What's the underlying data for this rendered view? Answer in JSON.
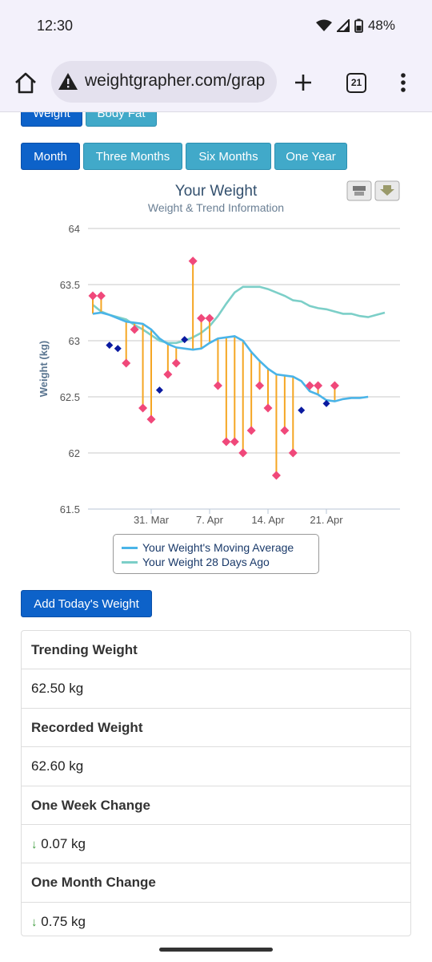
{
  "status": {
    "time": "12:30",
    "battery": "48%"
  },
  "browser": {
    "url": "weightgrapher.com/grap",
    "tab_count": "21"
  },
  "metric_tabs": [
    {
      "label": "Weight"
    },
    {
      "label": "Body Fat"
    }
  ],
  "range_tabs": [
    {
      "label": "Month",
      "active": true
    },
    {
      "label": "Three Months",
      "active": false
    },
    {
      "label": "Six Months",
      "active": false
    },
    {
      "label": "One Year",
      "active": false
    }
  ],
  "chart_data": {
    "type": "line",
    "title": "Your Weight",
    "subtitle": "Weight & Trend Information",
    "ylabel": "Weight (kg)",
    "ylim": [
      61.5,
      64
    ],
    "yticks": [
      "64",
      "63.5",
      "63",
      "62.5",
      "62",
      "61.5"
    ],
    "xticks": [
      "31. Mar",
      "7. Apr",
      "14. Apr",
      "21. Apr"
    ],
    "grid": true,
    "legend_position": "bottom",
    "series": [
      {
        "name": "Your Weight's Moving Average",
        "color": "#4ab4e8",
        "points": [
          [
            "2025-03-24",
            63.24
          ],
          [
            "2025-03-25",
            63.25
          ],
          [
            "2025-03-26",
            63.23
          ],
          [
            "2025-03-27",
            63.2
          ],
          [
            "2025-03-28",
            63.17
          ],
          [
            "2025-03-29",
            63.16
          ],
          [
            "2025-03-30",
            63.15
          ],
          [
            "2025-03-31",
            63.1
          ],
          [
            "2025-04-01",
            63.02
          ],
          [
            "2025-04-02",
            62.97
          ],
          [
            "2025-04-03",
            62.94
          ],
          [
            "2025-04-04",
            62.93
          ],
          [
            "2025-04-05",
            62.92
          ],
          [
            "2025-04-06",
            62.93
          ],
          [
            "2025-04-07",
            62.98
          ],
          [
            "2025-04-08",
            63.02
          ],
          [
            "2025-04-09",
            63.03
          ],
          [
            "2025-04-10",
            63.04
          ],
          [
            "2025-04-11",
            63.0
          ],
          [
            "2025-04-12",
            62.9
          ],
          [
            "2025-04-13",
            62.82
          ],
          [
            "2025-04-14",
            62.75
          ],
          [
            "2025-04-15",
            62.7
          ],
          [
            "2025-04-16",
            62.69
          ],
          [
            "2025-04-17",
            62.68
          ],
          [
            "2025-04-18",
            62.64
          ],
          [
            "2025-04-19",
            62.55
          ],
          [
            "2025-04-20",
            62.52
          ],
          [
            "2025-04-21",
            62.47
          ],
          [
            "2025-04-22",
            62.46
          ],
          [
            "2025-04-23",
            62.48
          ],
          [
            "2025-04-24",
            62.49
          ],
          [
            "2025-04-25",
            62.49
          ],
          [
            "2025-04-26",
            62.5
          ]
        ]
      },
      {
        "name": "Your Weight 28 Days Ago",
        "color": "#7ccfc8",
        "points": [
          [
            "2025-03-24",
            63.32
          ],
          [
            "2025-03-25",
            63.26
          ],
          [
            "2025-03-26",
            63.23
          ],
          [
            "2025-03-27",
            63.21
          ],
          [
            "2025-03-28",
            63.19
          ],
          [
            "2025-03-29",
            63.14
          ],
          [
            "2025-03-30",
            63.1
          ],
          [
            "2025-03-31",
            63.05
          ],
          [
            "2025-04-01",
            63.0
          ],
          [
            "2025-04-02",
            62.98
          ],
          [
            "2025-04-03",
            62.98
          ],
          [
            "2025-04-04",
            63.0
          ],
          [
            "2025-04-05",
            63.03
          ],
          [
            "2025-04-06",
            63.07
          ],
          [
            "2025-04-07",
            63.13
          ],
          [
            "2025-04-08",
            63.22
          ],
          [
            "2025-04-09",
            63.33
          ],
          [
            "2025-04-10",
            63.43
          ],
          [
            "2025-04-11",
            63.48
          ],
          [
            "2025-04-12",
            63.48
          ],
          [
            "2025-04-13",
            63.48
          ],
          [
            "2025-04-14",
            63.46
          ],
          [
            "2025-04-15",
            63.43
          ],
          [
            "2025-04-16",
            63.4
          ],
          [
            "2025-04-17",
            63.36
          ],
          [
            "2025-04-18",
            63.35
          ],
          [
            "2025-04-19",
            63.31
          ],
          [
            "2025-04-20",
            63.29
          ],
          [
            "2025-04-21",
            63.28
          ],
          [
            "2025-04-22",
            63.26
          ],
          [
            "2025-04-23",
            63.24
          ],
          [
            "2025-04-24",
            63.24
          ],
          [
            "2025-04-25",
            63.22
          ],
          [
            "2025-04-26",
            63.21
          ],
          [
            "2025-04-27",
            63.23
          ],
          [
            "2025-04-28",
            63.25
          ]
        ]
      }
    ],
    "weights": [
      [
        "2025-03-24",
        63.4,
        "above"
      ],
      [
        "2025-03-25",
        63.4,
        "above"
      ],
      [
        "2025-03-26",
        62.96,
        "below"
      ],
      [
        "2025-03-27",
        62.93,
        "below"
      ],
      [
        "2025-03-28",
        62.8,
        "above"
      ],
      [
        "2025-03-29",
        63.1,
        "above"
      ],
      [
        "2025-03-30",
        62.4,
        "above"
      ],
      [
        "2025-03-31",
        62.3,
        "above"
      ],
      [
        "2025-04-01",
        62.56,
        "below"
      ],
      [
        "2025-04-02",
        62.7,
        "above"
      ],
      [
        "2025-04-03",
        62.8,
        "above"
      ],
      [
        "2025-04-04",
        63.01,
        "below"
      ],
      [
        "2025-04-05",
        63.71,
        "above"
      ],
      [
        "2025-04-06",
        63.2,
        "above"
      ],
      [
        "2025-04-07",
        63.2,
        "above"
      ],
      [
        "2025-04-08",
        62.6,
        "above"
      ],
      [
        "2025-04-09",
        62.1,
        "above"
      ],
      [
        "2025-04-10",
        62.1,
        "above"
      ],
      [
        "2025-04-11",
        62.0,
        "above"
      ],
      [
        "2025-04-12",
        62.2,
        "above"
      ],
      [
        "2025-04-13",
        62.6,
        "above"
      ],
      [
        "2025-04-14",
        62.4,
        "above"
      ],
      [
        "2025-04-15",
        61.8,
        "above"
      ],
      [
        "2025-04-16",
        62.2,
        "above"
      ],
      [
        "2025-04-17",
        62.0,
        "above"
      ],
      [
        "2025-04-18",
        62.38,
        "below"
      ],
      [
        "2025-04-19",
        62.6,
        "above"
      ],
      [
        "2025-04-20",
        62.6,
        "above"
      ],
      [
        "2025-04-21",
        62.44,
        "below"
      ],
      [
        "2025-04-22",
        62.6,
        "above"
      ]
    ],
    "marker_colors": {
      "above": "#f0487a",
      "below": "#0a1aa0",
      "drop_line": "#f5a623"
    }
  },
  "add_button": {
    "label": "Add Today's Weight"
  },
  "stats": [
    {
      "label": "Trending Weight",
      "value": "62.50 kg",
      "arrow": ""
    },
    {
      "label": "Recorded Weight",
      "value": "62.60 kg",
      "arrow": ""
    },
    {
      "label": "One Week Change",
      "value": "0.07 kg",
      "arrow": "↓"
    },
    {
      "label": "One Month Change",
      "value": "0.75 kg",
      "arrow": "↓"
    }
  ]
}
